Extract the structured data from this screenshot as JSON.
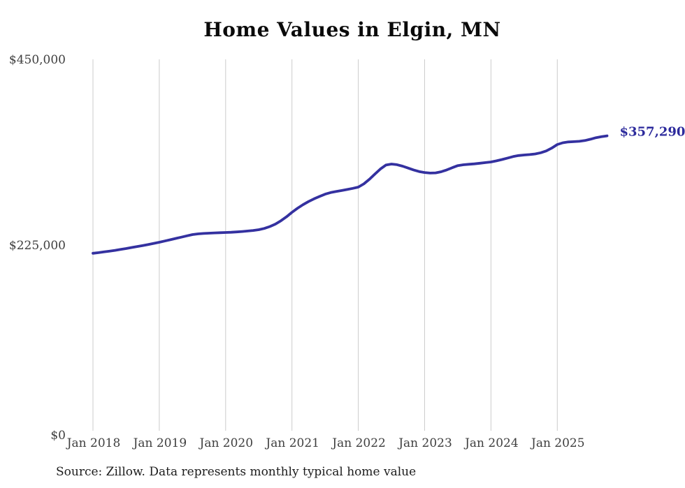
{
  "chart": {
    "title": "Home Values in Elgin, MN",
    "end_label": "$357,290",
    "source": "Source: Zillow. Data represents monthly typical home value",
    "colors": {
      "line": "#3431a0",
      "end_label": "#2c2a9c",
      "gridline": "#cccccc",
      "title_text": "#0a0a0a",
      "axis_text": "#3f3f3f",
      "source_text": "#1c1c1c",
      "background": "#ffffff"
    }
  },
  "chart_data": {
    "type": "line",
    "title": "Home Values in Elgin, MN",
    "xlabel": "",
    "ylabel": "",
    "ylim": [
      0,
      450000
    ],
    "grid": "vertical-only",
    "legend": "none",
    "annotation": "$357,290",
    "y_ticks": [
      {
        "label": "$0",
        "value": 0
      },
      {
        "label": "$225,000",
        "value": 225000
      },
      {
        "label": "$450,000",
        "value": 450000
      }
    ],
    "x_ticks": [
      "Jan 2018",
      "Jan 2019",
      "Jan 2020",
      "Jan 2021",
      "Jan 2022",
      "Jan 2023",
      "Jan 2024",
      "Jan 2025"
    ],
    "series_name": "Typical home value (monthly)",
    "months": [
      "2018-01",
      "2018-02",
      "2018-03",
      "2018-04",
      "2018-05",
      "2018-06",
      "2018-07",
      "2018-08",
      "2018-09",
      "2018-10",
      "2018-11",
      "2018-12",
      "2019-01",
      "2019-02",
      "2019-03",
      "2019-04",
      "2019-05",
      "2019-06",
      "2019-07",
      "2019-08",
      "2019-09",
      "2019-10",
      "2019-11",
      "2019-12",
      "2020-01",
      "2020-02",
      "2020-03",
      "2020-04",
      "2020-05",
      "2020-06",
      "2020-07",
      "2020-08",
      "2020-09",
      "2020-10",
      "2020-11",
      "2020-12",
      "2021-01",
      "2021-02",
      "2021-03",
      "2021-04",
      "2021-05",
      "2021-06",
      "2021-07",
      "2021-08",
      "2021-09",
      "2021-10",
      "2021-11",
      "2021-12",
      "2022-01",
      "2022-02",
      "2022-03",
      "2022-04",
      "2022-05",
      "2022-06",
      "2022-07",
      "2022-08",
      "2022-09",
      "2022-10",
      "2022-11",
      "2022-12",
      "2023-01",
      "2023-02",
      "2023-03",
      "2023-04",
      "2023-05",
      "2023-06",
      "2023-07",
      "2023-08",
      "2023-09",
      "2023-10",
      "2023-11",
      "2023-12",
      "2024-01",
      "2024-02",
      "2024-03",
      "2024-04",
      "2024-05",
      "2024-06",
      "2024-07",
      "2024-08",
      "2024-09",
      "2024-10",
      "2024-11",
      "2024-12",
      "2025-01",
      "2025-02",
      "2025-03",
      "2025-04",
      "2025-05",
      "2025-06",
      "2025-07",
      "2025-08",
      "2025-09",
      "2025-10"
    ],
    "values": [
      215000,
      215800,
      216700,
      217600,
      218600,
      219700,
      220800,
      222000,
      223200,
      224400,
      225700,
      227000,
      228400,
      229900,
      231400,
      233000,
      234600,
      236200,
      237700,
      238500,
      239000,
      239400,
      239700,
      240000,
      240200,
      240500,
      240900,
      241400,
      242000,
      242700,
      243600,
      245100,
      247400,
      250400,
      254400,
      259200,
      264700,
      269600,
      273900,
      277700,
      281000,
      283900,
      286700,
      288600,
      289900,
      291100,
      292300,
      293700,
      295200,
      299100,
      304600,
      310900,
      317100,
      321900,
      323100,
      322400,
      320600,
      318300,
      316000,
      314100,
      312900,
      312200,
      312500,
      313800,
      316000,
      318700,
      321300,
      322300,
      322900,
      323400,
      324100,
      324900,
      325700,
      327000,
      328600,
      330400,
      332200,
      333400,
      334100,
      334600,
      335400,
      336800,
      339000,
      342500,
      346800,
      348900,
      349900,
      350300,
      350700,
      351600,
      353200,
      355100,
      356300,
      357290
    ],
    "last_value": 357290
  }
}
